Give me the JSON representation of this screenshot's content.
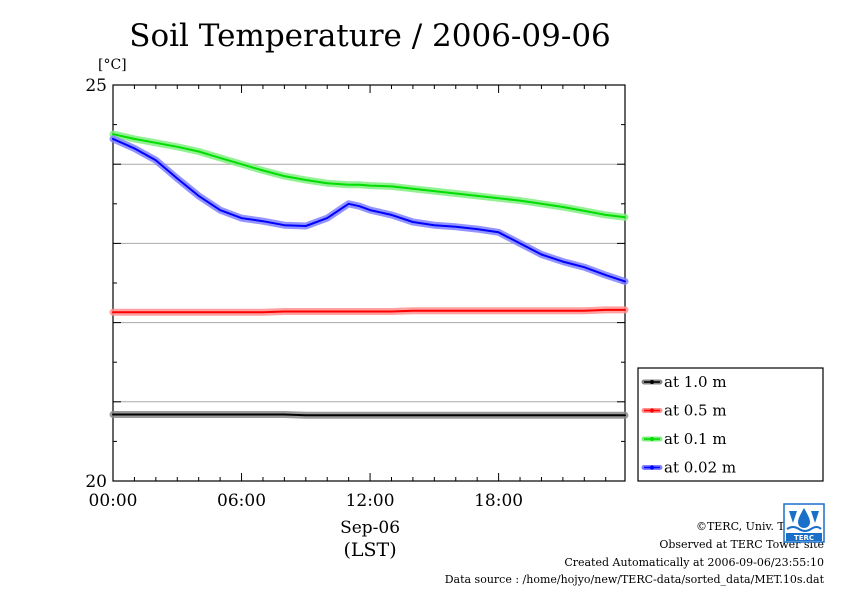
{
  "chart_data": {
    "type": "line",
    "title": "Soil Temperature / 2006-09-06",
    "ylabel": "[°C]",
    "ylim": [
      20,
      25
    ],
    "y_tick_labels": [
      "25",
      "20"
    ],
    "y_gridlines": [
      21,
      22,
      23,
      24
    ],
    "xlim_hours": [
      0,
      23.9
    ],
    "x_tick_labels": [
      "00:00",
      "06:00",
      "12:00",
      "18:00"
    ],
    "x_ticks_hours": [
      0,
      6,
      12,
      18
    ],
    "xlabel_date": "Sep-06",
    "xlabel_unit": "(LST)",
    "grid": "horizontal",
    "legend_position": "bottom-right",
    "x_hours": [
      0,
      1,
      2,
      3,
      4,
      5,
      6,
      7,
      8,
      9,
      10,
      11,
      11.5,
      12,
      13,
      14,
      15,
      16,
      17,
      18,
      19,
      20,
      21,
      22,
      23,
      23.9
    ],
    "series": [
      {
        "name": "at 1.0 m",
        "color": "#000000",
        "halo": "#888888",
        "values": [
          20.84,
          20.84,
          20.84,
          20.84,
          20.84,
          20.84,
          20.84,
          20.84,
          20.84,
          20.83,
          20.83,
          20.83,
          20.83,
          20.83,
          20.83,
          20.83,
          20.83,
          20.83,
          20.83,
          20.83,
          20.83,
          20.83,
          20.83,
          20.83,
          20.83,
          20.83
        ]
      },
      {
        "name": "at 0.5 m",
        "color": "#ff0000",
        "halo": "#ff9090",
        "values": [
          22.13,
          22.13,
          22.13,
          22.13,
          22.13,
          22.13,
          22.13,
          22.13,
          22.14,
          22.14,
          22.14,
          22.14,
          22.14,
          22.14,
          22.14,
          22.15,
          22.15,
          22.15,
          22.15,
          22.15,
          22.15,
          22.15,
          22.15,
          22.15,
          22.16,
          22.16
        ]
      },
      {
        "name": "at 0.1 m",
        "color": "#00dd00",
        "halo": "#80ee80",
        "values": [
          24.38,
          24.32,
          24.27,
          24.22,
          24.16,
          24.08,
          24.0,
          23.92,
          23.85,
          23.8,
          23.76,
          23.74,
          23.74,
          23.73,
          23.72,
          23.69,
          23.66,
          23.63,
          23.6,
          23.57,
          23.54,
          23.5,
          23.46,
          23.41,
          23.36,
          23.33
        ]
      },
      {
        "name": "at 0.02 m",
        "color": "#0000ff",
        "halo": "#8080ff",
        "values": [
          24.32,
          24.2,
          24.05,
          23.82,
          23.6,
          23.42,
          23.32,
          23.28,
          23.23,
          23.22,
          23.32,
          23.5,
          23.47,
          23.42,
          23.36,
          23.27,
          23.23,
          23.21,
          23.18,
          23.14,
          23.0,
          22.86,
          22.77,
          22.7,
          22.6,
          22.52
        ]
      }
    ]
  },
  "footer": {
    "copyright": "©TERC, Univ. Tsukuba",
    "observed": "Observed at TERC Tower site",
    "created": "Created Automatically at 2006-09-06/23:55:10",
    "source": "Data source : /home/hojyo/new/TERC-data/sorted_data/MET.10s.dat"
  },
  "logo": {
    "name": "terc-logo",
    "text": "TERC"
  }
}
